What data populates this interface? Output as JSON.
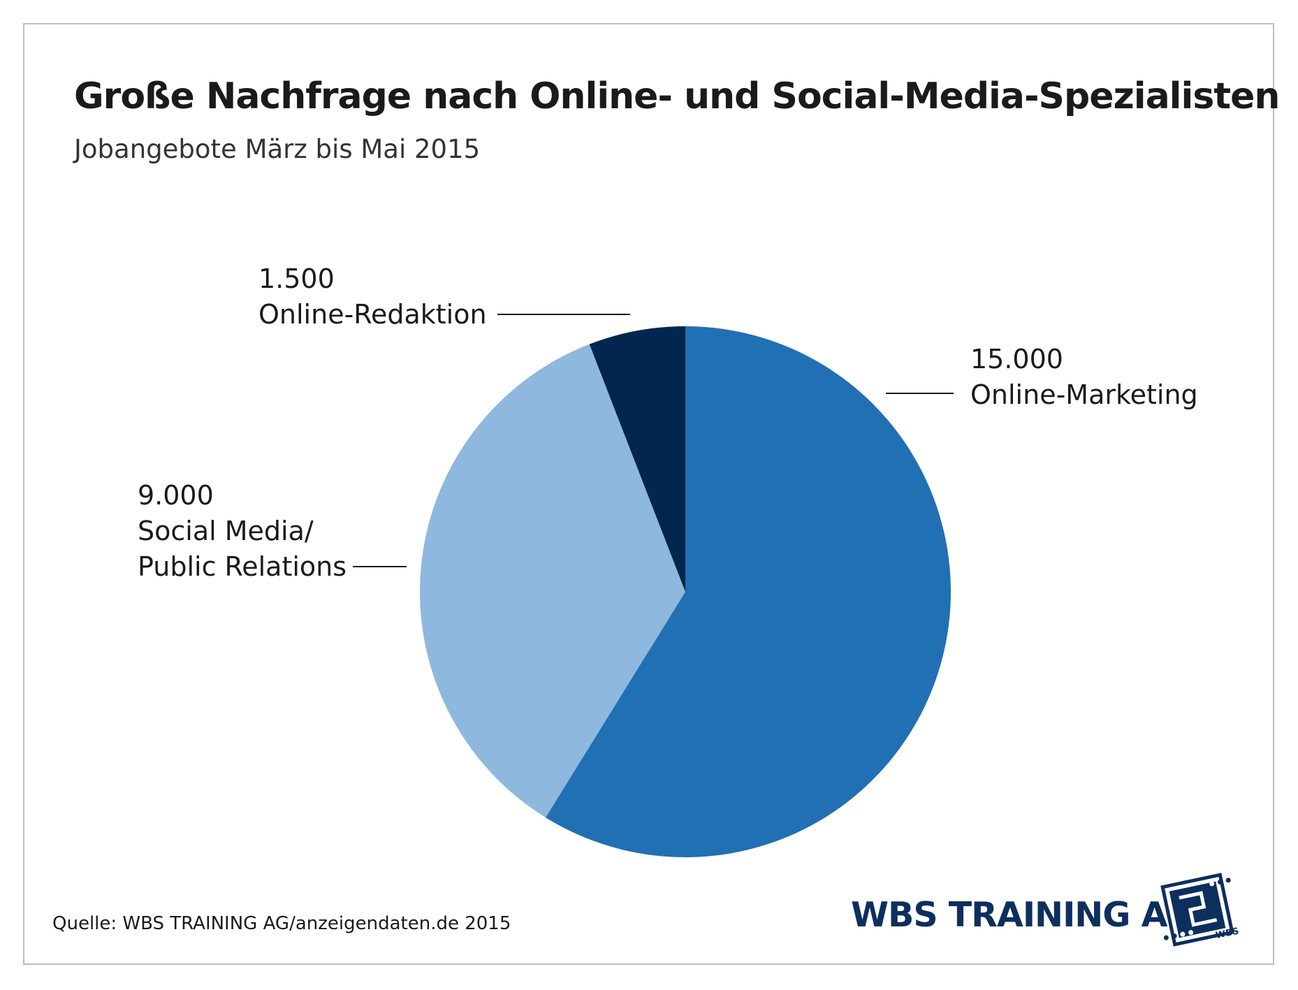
{
  "title": "Große Nachfrage nach Online- und Social-Media-Spezialisten",
  "subtitle": "Jobangebote März bis Mai 2015",
  "source": "Quelle: WBS TRAINING AG/anzeigendaten.de 2015",
  "brand": {
    "name": "WBS TRAINING AG",
    "logo_text": "WBS",
    "color": "#0d2f5e"
  },
  "chart_data": {
    "type": "pie",
    "title": "Große Nachfrage nach Online- und Social-Media-Spezialisten",
    "subtitle": "Jobangebote März bis Mai 2015",
    "start": "12 o'clock, clockwise",
    "slices": [
      {
        "label": "Online-Marketing",
        "value": 15000,
        "value_label": "15.000",
        "color": "#2170b3"
      },
      {
        "label": "Social Media/ Public Relations",
        "label_lines": [
          "Social Media/",
          "Public Relations"
        ],
        "value": 9000,
        "value_label": "9.000",
        "color": "#8fb8df"
      },
      {
        "label": "Online-Redaktion",
        "value": 1500,
        "value_label": "1.500",
        "color": "#03264f"
      }
    ]
  }
}
